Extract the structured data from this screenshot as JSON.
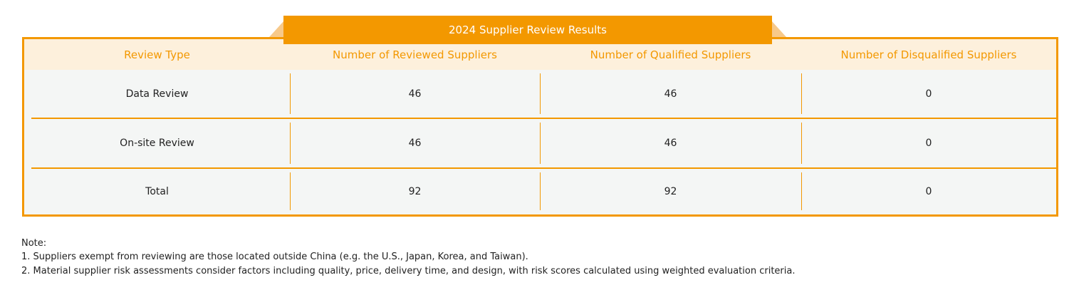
{
  "table": {
    "title": "2024 Supplier Review Results",
    "headers": [
      "Review Type",
      "Number of Reviewed Suppliers",
      "Number of Qualified Suppliers",
      "Number of Disqualified Suppliers"
    ],
    "rows": [
      [
        "Data Review",
        46,
        46,
        0
      ],
      [
        "On-site Review",
        46,
        46,
        0
      ],
      [
        "Total",
        92,
        92,
        0
      ]
    ]
  },
  "notes": {
    "heading": "Note:",
    "items": [
      "1. Suppliers exempt from reviewing are those located outside China (e.g. the U.S., Japan, Korea, and Taiwan).",
      "2. Material supplier risk assessments consider factors including quality, price, delivery time, and design, with risk scores calculated using weighted evaluation criteria."
    ]
  }
}
